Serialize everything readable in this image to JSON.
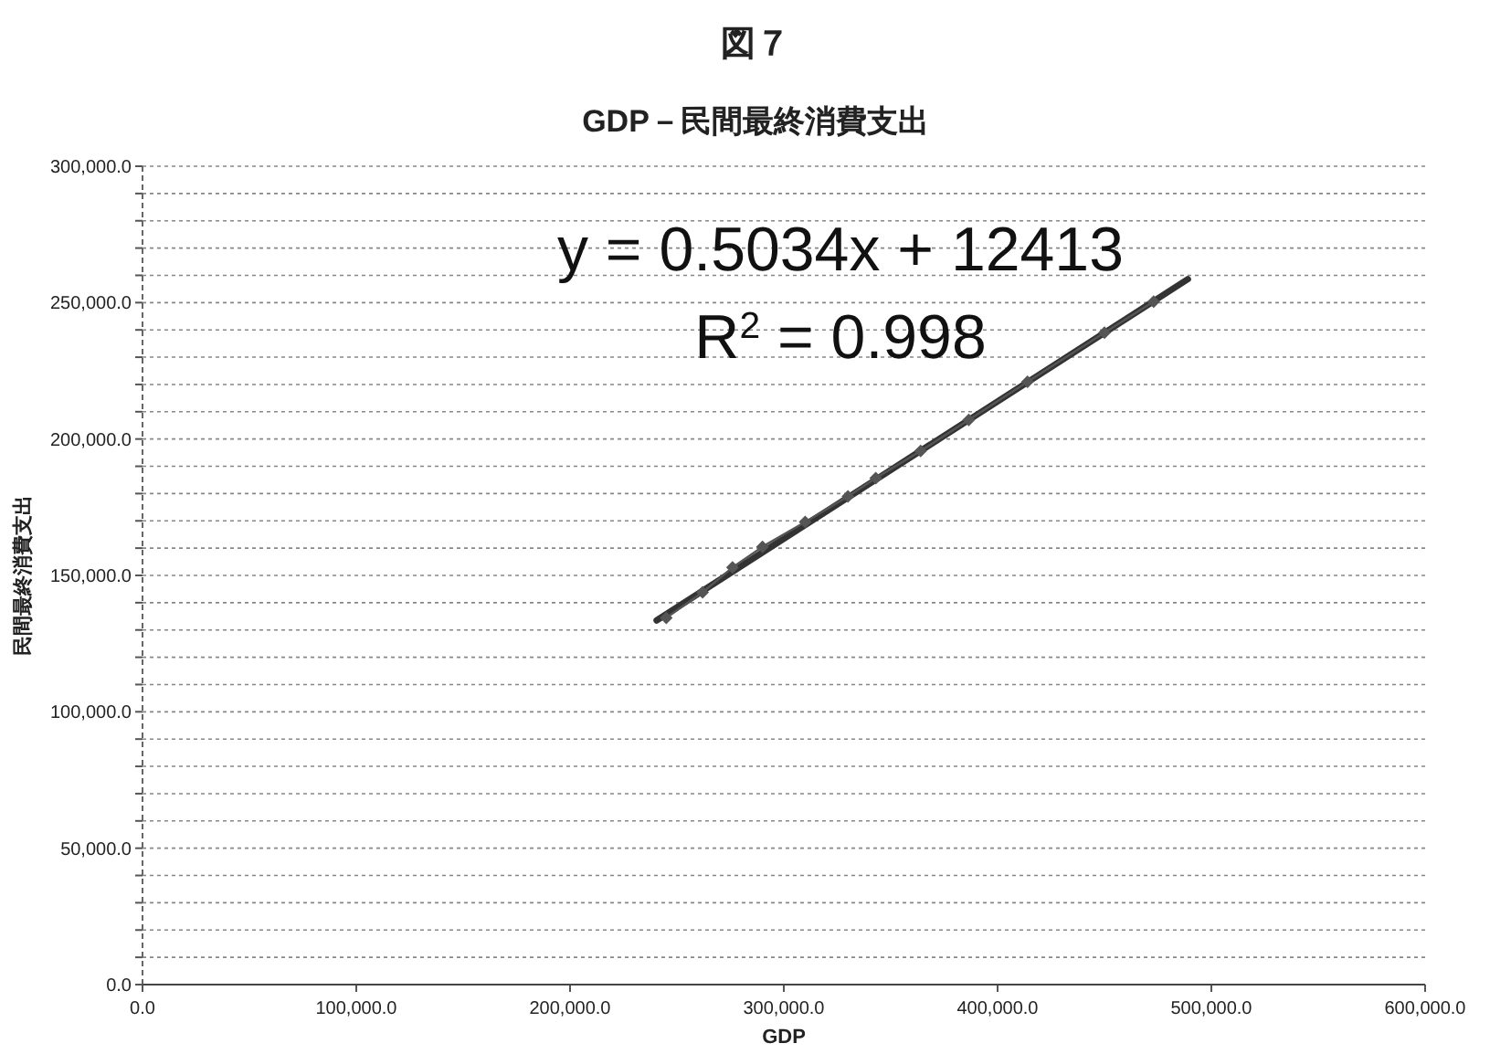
{
  "chart_data": {
    "type": "line",
    "title": "図７",
    "subtitle": "GDP－民間最終消費支出",
    "xlabel": "GDP",
    "ylabel": "民間最終消費支出",
    "annotations": [
      "y = 0.5034x + 12413",
      "R$^{2}$ = 0.998"
    ],
    "series": [
      {
        "type": "line",
        "color": "#333333",
        "marker": "none",
        "x": [
          240500,
          489000
        ],
        "values": [
          133500,
          258600
        ]
      },
      {
        "type": "line",
        "color": "#555555",
        "marker": "diamond",
        "x": [
          245000,
          262000,
          276000,
          290000,
          310000,
          330000,
          343000,
          364000,
          386500,
          414000,
          450000,
          473000
        ],
        "values": [
          134400,
          143800,
          152900,
          160500,
          169600,
          179000,
          185700,
          195600,
          207000,
          221000,
          239000,
          250400
        ]
      }
    ],
    "xlim": [
      0,
      600000
    ],
    "ylim": [
      0,
      300000
    ],
    "xticks": [
      {
        "value": 0,
        "label": "0.0"
      },
      {
        "value": 100000,
        "label": "100,000.0"
      },
      {
        "value": 200000,
        "label": "200,000.0"
      },
      {
        "value": 300000,
        "label": "300,000.0"
      },
      {
        "value": 400000,
        "label": "400,000.0"
      },
      {
        "value": 500000,
        "label": "500,000.0"
      },
      {
        "value": 600000,
        "label": "600,000.0"
      }
    ],
    "yticks": [
      {
        "value": 0,
        "label": "0.0"
      },
      {
        "value": 10000,
        "label": null
      },
      {
        "value": 20000,
        "label": null
      },
      {
        "value": 30000,
        "label": null
      },
      {
        "value": 40000,
        "label": null
      },
      {
        "value": 50000,
        "label": "50,000.0"
      },
      {
        "value": 60000,
        "label": null
      },
      {
        "value": 70000,
        "label": null
      },
      {
        "value": 80000,
        "label": null
      },
      {
        "value": 90000,
        "label": null
      },
      {
        "value": 100000,
        "label": "100,000.0"
      },
      {
        "value": 110000,
        "label": null
      },
      {
        "value": 120000,
        "label": null
      },
      {
        "value": 130000,
        "label": null
      },
      {
        "value": 140000,
        "label": null
      },
      {
        "value": 150000,
        "label": "150,000.0"
      },
      {
        "value": 160000,
        "label": null
      },
      {
        "value": 170000,
        "label": null
      },
      {
        "value": 180000,
        "label": null
      },
      {
        "value": 190000,
        "label": null
      },
      {
        "value": 200000,
        "label": "200,000.0"
      },
      {
        "value": 210000,
        "label": null
      },
      {
        "value": 220000,
        "label": null
      },
      {
        "value": 230000,
        "label": null
      },
      {
        "value": 240000,
        "label": null
      },
      {
        "value": 250000,
        "label": "250,000.0"
      },
      {
        "value": 260000,
        "label": null
      },
      {
        "value": 270000,
        "label": null
      },
      {
        "value": 280000,
        "label": null
      },
      {
        "value": 290000,
        "label": null
      },
      {
        "value": 300000,
        "label": "300,000.0"
      }
    ],
    "grid": "y"
  }
}
